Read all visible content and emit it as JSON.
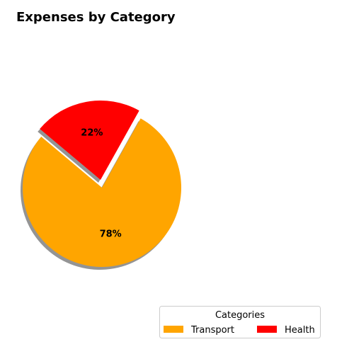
{
  "chart_data": {
    "type": "pie",
    "title": "Expenses by Category",
    "categories": [
      "Transport",
      "Health"
    ],
    "values": [
      78,
      22
    ],
    "labels": [
      "78%",
      "22%"
    ],
    "colors": [
      "#FFA500",
      "#FF0000"
    ],
    "explode": [
      0,
      0.1
    ],
    "start_angle_deg": 140,
    "shadow": true,
    "legend": {
      "title": "Categories",
      "placement": "bottom-right",
      "columns": 2
    }
  }
}
